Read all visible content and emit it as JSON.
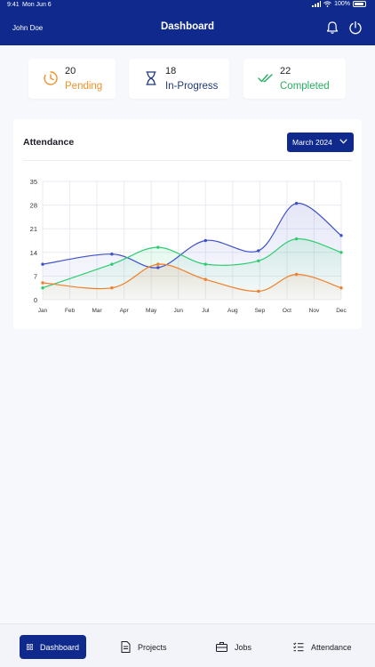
{
  "status_bar": {
    "time": "9:41",
    "date": "Mon Jun 6",
    "battery": "100%"
  },
  "header": {
    "user_name": "John Doe",
    "title": "Dashboard"
  },
  "stats": [
    {
      "count": "20",
      "label": "Pending",
      "color": "#f0932b"
    },
    {
      "count": "18",
      "label": "In-Progress",
      "color": "#1f3a7a"
    },
    {
      "count": "22",
      "label": "Completed",
      "color": "#27ae60"
    }
  ],
  "attendance": {
    "title": "Attendance",
    "month": "March 2024"
  },
  "chart_data": {
    "type": "area",
    "categories": [
      "Jan",
      "Feb",
      "Mar",
      "Apr",
      "May",
      "Jun",
      "Jul",
      "Aug",
      "Sep",
      "Oct",
      "Nov",
      "Dec"
    ],
    "ylim": [
      0,
      35
    ],
    "yticks": [
      0,
      7,
      14,
      21,
      28,
      35
    ],
    "grid": true,
    "series": [
      {
        "color": "#3f51c8",
        "points": [
          [
            0,
            10.5
          ],
          [
            2.55,
            13.5
          ],
          [
            4.25,
            9.5
          ],
          [
            6,
            17.5
          ],
          [
            7.95,
            14.5
          ],
          [
            9.35,
            28.5
          ],
          [
            11,
            19
          ]
        ]
      },
      {
        "color": "#2ecc71",
        "points": [
          [
            0,
            3.5
          ],
          [
            2.55,
            10.5
          ],
          [
            4.25,
            15.5
          ],
          [
            6,
            10.5
          ],
          [
            7.95,
            11.5
          ],
          [
            9.35,
            18
          ],
          [
            11,
            14
          ]
        ]
      },
      {
        "color": "#f07f2a",
        "points": [
          [
            0,
            5
          ],
          [
            2.55,
            3.5
          ],
          [
            4.25,
            10.5
          ],
          [
            6,
            6
          ],
          [
            7.95,
            2.5
          ],
          [
            9.35,
            7.5
          ],
          [
            11,
            3.5
          ]
        ]
      }
    ]
  },
  "nav": {
    "dashboard": "Dashboard",
    "projects": "Projects",
    "jobs": "Jobs",
    "attendance": "Attendance"
  }
}
